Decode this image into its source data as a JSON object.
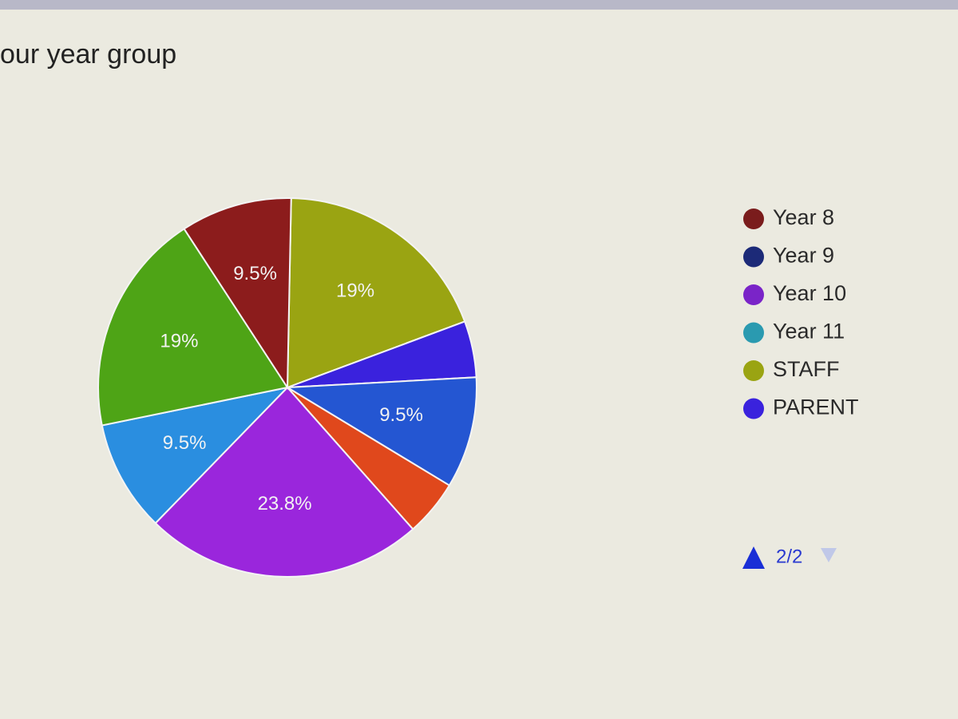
{
  "chart_data": {
    "type": "pie",
    "title": "our year group",
    "values": [
      19,
      4.8,
      9.5,
      4.8,
      23.8,
      9.5,
      19,
      9.5
    ],
    "value_labels": [
      "19%",
      null,
      "9.5%",
      null,
      "23.8%",
      "9.5%",
      "19%",
      "9.5%"
    ],
    "colors": [
      "#9aa412",
      "#3a22dd",
      "#2456d2",
      "#e0481c",
      "#9a26dc",
      "#2a8ee0",
      "#4ea416",
      "#8c1c1c"
    ],
    "legend": [
      {
        "name": "Year 8",
        "color": "#7a1c1c"
      },
      {
        "name": "Year 9",
        "color": "#1c2a78"
      },
      {
        "name": "Year 10",
        "color": "#7a24c8"
      },
      {
        "name": "Year 11",
        "color": "#2a9ab0"
      },
      {
        "name": "STAFF",
        "color": "#9aa412"
      },
      {
        "name": "PARENT",
        "color": "#3a22dd"
      }
    ],
    "pager": "2/2"
  }
}
